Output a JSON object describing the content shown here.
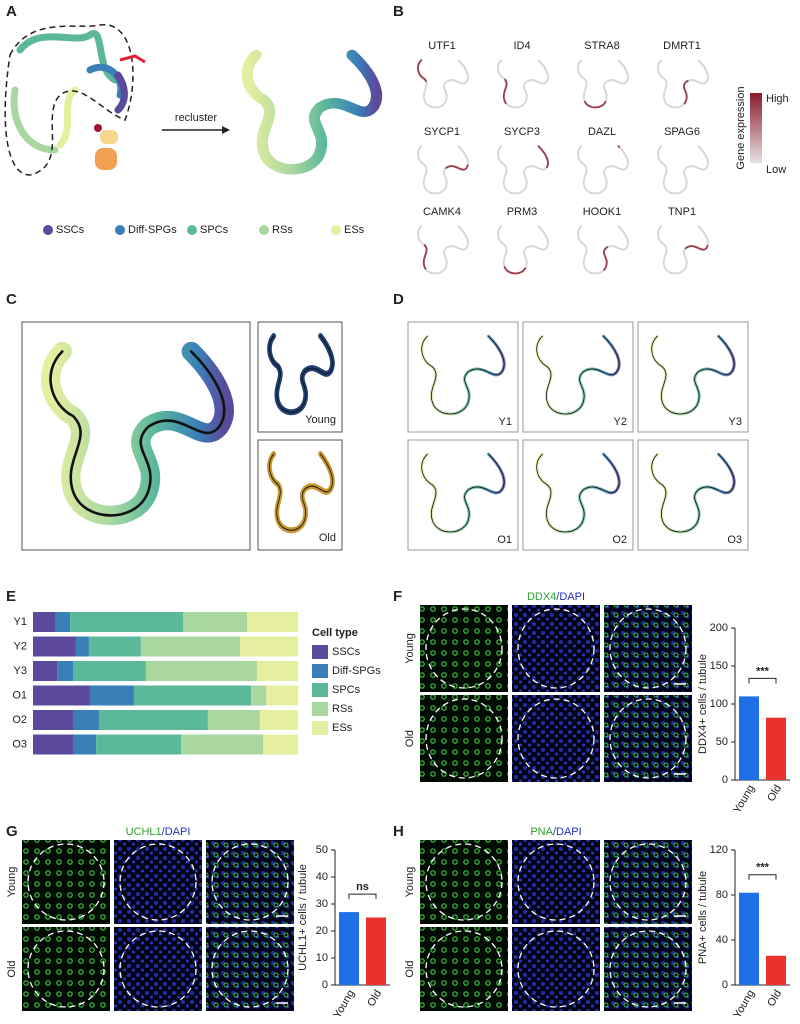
{
  "panel_labels": [
    "A",
    "B",
    "C",
    "D",
    "E",
    "F",
    "G",
    "H"
  ],
  "figure": {
    "A": {
      "arrow_label": "recluster"
    },
    "B": {
      "genes": [
        "UTF1",
        "ID4",
        "STRA8",
        "DMRT1",
        "SYCP1",
        "SYCP3",
        "DAZL",
        "SPAG6",
        "CAMK4",
        "PRM3",
        "HOOK1",
        "TNP1"
      ],
      "colorbar": {
        "title": "Gene expression",
        "high": "High",
        "low": "Low",
        "colors": [
          "#8b1a2b",
          "#e6e2e4"
        ]
      }
    },
    "C": {
      "groups": [
        {
          "name": "Young",
          "color": "#1f3f73"
        },
        {
          "name": "Old",
          "color": "#c8962e"
        }
      ]
    },
    "D": {
      "samples": [
        "Y1",
        "Y2",
        "Y3",
        "O1",
        "O2",
        "O3"
      ]
    }
  },
  "chart_data": [
    {
      "type": "stacked-bar-h",
      "legend_title": "Cell type",
      "xlim": [
        0,
        100
      ],
      "categories": [
        "Y1",
        "Y2",
        "Y3",
        "O1",
        "O2",
        "O3"
      ],
      "series": [
        {
          "name": "SSCs",
          "color": "#5b4a9b",
          "values": [
            8.3,
            16.2,
            9.1,
            21.5,
            15.1,
            15.1
          ]
        },
        {
          "name": "Diff-SPGs",
          "color": "#3a7fb8",
          "values": [
            5.7,
            4.9,
            6.0,
            16.6,
            9.8,
            8.7
          ]
        },
        {
          "name": "SPCs",
          "color": "#5bb89a",
          "values": [
            42.6,
            19.6,
            27.5,
            44.2,
            41.1,
            32.1
          ]
        },
        {
          "name": "RSs",
          "color": "#a8d8a0",
          "values": [
            24.2,
            37.4,
            41.9,
            5.7,
            19.6,
            30.9
          ]
        },
        {
          "name": "ESs",
          "color": "#e6eea0",
          "values": [
            19.2,
            21.9,
            15.5,
            12.1,
            14.3,
            13.2
          ]
        }
      ]
    },
    {
      "type": "bar",
      "title_parts": [
        {
          "text": "DDX4",
          "color": "#2aa02a"
        },
        {
          "text": "/DAPI",
          "color": "#2030c0"
        }
      ],
      "row_labels": [
        "Young",
        "Old"
      ],
      "categories": [
        "Young",
        "Old"
      ],
      "values": [
        110,
        82
      ],
      "colors": [
        "#1f6fe8",
        "#e8322b"
      ],
      "ylabel": "DDX4+ cells / tubule",
      "ylim": [
        0,
        200
      ],
      "yticks": [
        0,
        50,
        100,
        150,
        200
      ],
      "significance": "***",
      "stain": "#35c03a"
    },
    {
      "type": "bar",
      "title_parts": [
        {
          "text": "UCHL1",
          "color": "#2aa02a"
        },
        {
          "text": "/DAPI",
          "color": "#2030c0"
        }
      ],
      "row_labels": [
        "Young",
        "Old"
      ],
      "categories": [
        "Young",
        "Old"
      ],
      "values": [
        27,
        25
      ],
      "colors": [
        "#1f6fe8",
        "#e8322b"
      ],
      "ylabel": "UCHL1+ cells / tubule",
      "ylim": [
        0,
        50
      ],
      "yticks": [
        0,
        10,
        20,
        30,
        40,
        50
      ],
      "significance": "ns",
      "stain": "#35c03a"
    },
    {
      "type": "bar",
      "title_parts": [
        {
          "text": "PNA",
          "color": "#2aa02a"
        },
        {
          "text": "/DAPI",
          "color": "#2030c0"
        }
      ],
      "row_labels": [
        "Young",
        "Old"
      ],
      "categories": [
        "Young",
        "Old"
      ],
      "values": [
        82,
        26
      ],
      "colors": [
        "#1f6fe8",
        "#e8322b"
      ],
      "ylabel": "PNA+ cells / tubule",
      "ylim": [
        0,
        120
      ],
      "yticks": [
        0,
        40,
        80,
        120
      ],
      "significance": "***",
      "stain": "#35c03a"
    }
  ]
}
